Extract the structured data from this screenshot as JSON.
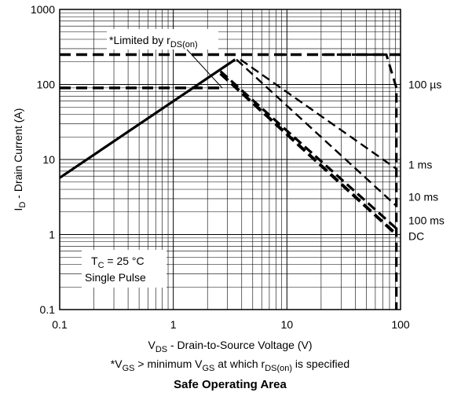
{
  "chart_data": {
    "type": "line",
    "title": "Safe Operating Area",
    "xlabel": {
      "main": "V",
      "sub": "DS",
      "rest": " - Drain-to-Source Voltage (V)"
    },
    "ylabel": {
      "main": "I",
      "sub": "D",
      "rest": " - Drain Current (A)"
    },
    "footnote": {
      "p1": "*V",
      "s1": "GS",
      "p2": " > minimum V",
      "s2": "GS",
      "p3": " at which r",
      "s3": "DS(on)",
      "p4": " is specified"
    },
    "rdson_note": {
      "main": "*Limited by r",
      "sub": "DS(on)"
    },
    "conditions": {
      "line1_main": "T",
      "line1_sub": "C",
      "line1_rest": " = 25 °C",
      "line2": "Single Pulse"
    },
    "xscale": "log",
    "yscale": "log",
    "xlim": [
      0.1,
      100
    ],
    "ylim": [
      0.1,
      1000
    ],
    "x_ticks": [
      0.1,
      1,
      10,
      100
    ],
    "x_tick_labels": [
      "0.1",
      "1",
      "10",
      "100"
    ],
    "y_ticks": [
      0.1,
      1,
      10,
      100,
      1000
    ],
    "y_tick_labels": [
      "0.1",
      "1",
      "10",
      "100",
      "1000"
    ],
    "grid": true,
    "rdson_limit": {
      "x": [
        0.1,
        3.5
      ],
      "y": [
        5.7,
        215
      ]
    },
    "current_limits": [
      {
        "y": 250,
        "x": [
          0.1,
          100
        ]
      },
      {
        "y": 90,
        "x": [
          0.1,
          2.6
        ]
      }
    ],
    "series": [
      {
        "name": "100 µs",
        "points": [
          [
            8.2,
            250
          ],
          [
            75,
            250
          ],
          [
            92,
            90
          ],
          [
            92,
            0.1
          ]
        ]
      },
      {
        "name": "1 ms",
        "points": [
          [
            3.9,
            215
          ],
          [
            92,
            7.5
          ]
        ]
      },
      {
        "name": "10 ms",
        "points": [
          [
            3.6,
            215
          ],
          [
            92,
            2.4
          ]
        ]
      },
      {
        "name": "100 ms",
        "points": [
          [
            2.6,
            150
          ],
          [
            92,
            1.2
          ]
        ]
      },
      {
        "name": "DC",
        "points": [
          [
            2.6,
            140
          ],
          [
            92,
            1.0
          ]
        ]
      }
    ],
    "series_label_y": [
      100,
      8.5,
      3.2,
      1.55,
      0.95
    ]
  }
}
